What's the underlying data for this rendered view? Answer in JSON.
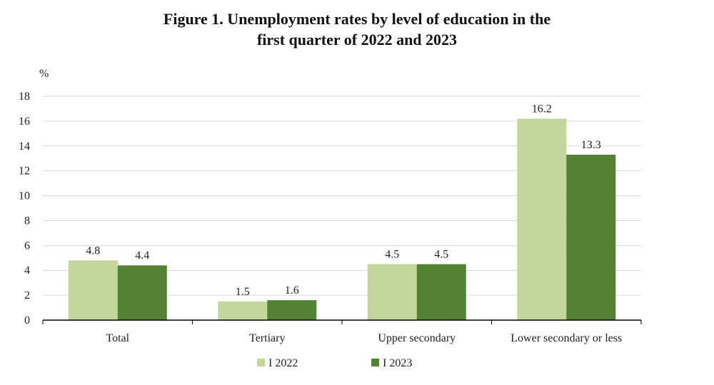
{
  "chart_data": {
    "type": "bar",
    "title_lines": [
      "Figure 1. Unemployment rates by level of education in the",
      "first quarter of 2022 and 2023"
    ],
    "ylabel": "%",
    "xlabel": "",
    "ylim": [
      0,
      18
    ],
    "yticks": [
      0,
      2,
      4,
      6,
      8,
      10,
      12,
      14,
      16,
      18
    ],
    "grid": true,
    "legend_position": "bottom-center",
    "categories": [
      "Total",
      "Tertiary",
      "Upper secondary",
      "Lower secondary or less"
    ],
    "series": [
      {
        "name": "I 2022",
        "color": "#c3d69b",
        "values": [
          4.8,
          1.5,
          4.5,
          16.2
        ]
      },
      {
        "name": "I 2023",
        "color": "#548235",
        "values": [
          4.4,
          1.6,
          4.5,
          13.3
        ]
      }
    ],
    "data_labels": true
  }
}
